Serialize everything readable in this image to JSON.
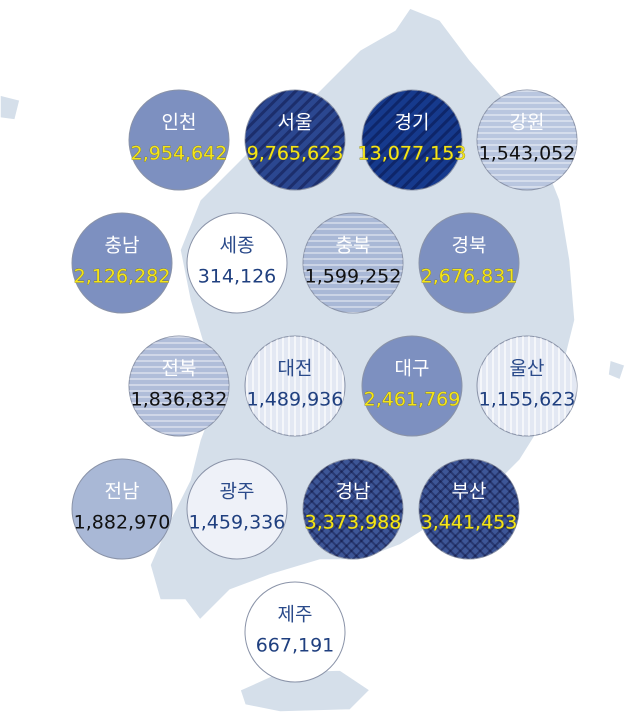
{
  "regions": [
    {
      "name": "인천",
      "population": "2,954,642",
      "color": "#7d90c0",
      "text_color": "#ffffff",
      "value_color": "#f4e41a",
      "pattern": "none"
    },
    {
      "name": "서울",
      "population": "9,765,623",
      "color": "#2b4790",
      "text_color": "#ffffff",
      "value_color": "#f4e41a",
      "pattern": "diagonal"
    },
    {
      "name": "경기",
      "population": "13,077,153",
      "color": "#163a8d",
      "text_color": "#ffffff",
      "value_color": "#f4e41a",
      "pattern": "diagonal"
    },
    {
      "name": "강원",
      "population": "1,543,052",
      "color": "#b9c6df",
      "text_color": "#ffffff",
      "value_color": "#111111",
      "pattern": "horizontal"
    },
    {
      "name": "충남",
      "population": "2,126,282",
      "color": "#7d90c0",
      "text_color": "#ffffff",
      "value_color": "#f4e41a",
      "pattern": "none"
    },
    {
      "name": "세종",
      "population": "314,126",
      "color": "#ffffff",
      "text_color": "#2a4a8a",
      "value_color": "#1f3f7f",
      "pattern": "none"
    },
    {
      "name": "충북",
      "population": "1,599,252",
      "color": "#a9b8d6",
      "text_color": "#ffffff",
      "value_color": "#111111",
      "pattern": "horizontal"
    },
    {
      "name": "경북",
      "population": "2,676,831",
      "color": "#7d90c0",
      "text_color": "#ffffff",
      "value_color": "#f4e41a",
      "pattern": "none"
    },
    {
      "name": "전북",
      "population": "1,836,832",
      "color": "#b0bdd9",
      "text_color": "#ffffff",
      "value_color": "#111111",
      "pattern": "horizontal"
    },
    {
      "name": "대전",
      "population": "1,489,936",
      "color": "#e3e8f3",
      "text_color": "#2a4a8a",
      "value_color": "#1f3f7f",
      "pattern": "vertical"
    },
    {
      "name": "대구",
      "population": "2,461,769",
      "color": "#7d90c0",
      "text_color": "#ffffff",
      "value_color": "#f4e41a",
      "pattern": "none"
    },
    {
      "name": "울산",
      "population": "1,155,623",
      "color": "#e3e8f3",
      "text_color": "#2a4a8a",
      "value_color": "#1f3f7f",
      "pattern": "vertical"
    },
    {
      "name": "전남",
      "population": "1,882,970",
      "color": "#a9b8d6",
      "text_color": "#ffffff",
      "value_color": "#111111",
      "pattern": "none"
    },
    {
      "name": "광주",
      "population": "1,459,336",
      "color": "#eef1f8",
      "text_color": "#2a4a8a",
      "value_color": "#1f3f7f",
      "pattern": "none"
    },
    {
      "name": "경남",
      "population": "3,373,988",
      "color": "#3d5697",
      "text_color": "#ffffff",
      "value_color": "#f4e41a",
      "pattern": "crosshatch"
    },
    {
      "name": "부산",
      "population": "3,441,453",
      "color": "#3d5697",
      "text_color": "#ffffff",
      "value_color": "#f4e41a",
      "pattern": "crosshatch"
    },
    {
      "name": "제주",
      "population": "667,191",
      "color": "#ffffff",
      "text_color": "#2a4a8a",
      "value_color": "#1f3f7f",
      "pattern": "none"
    }
  ]
}
